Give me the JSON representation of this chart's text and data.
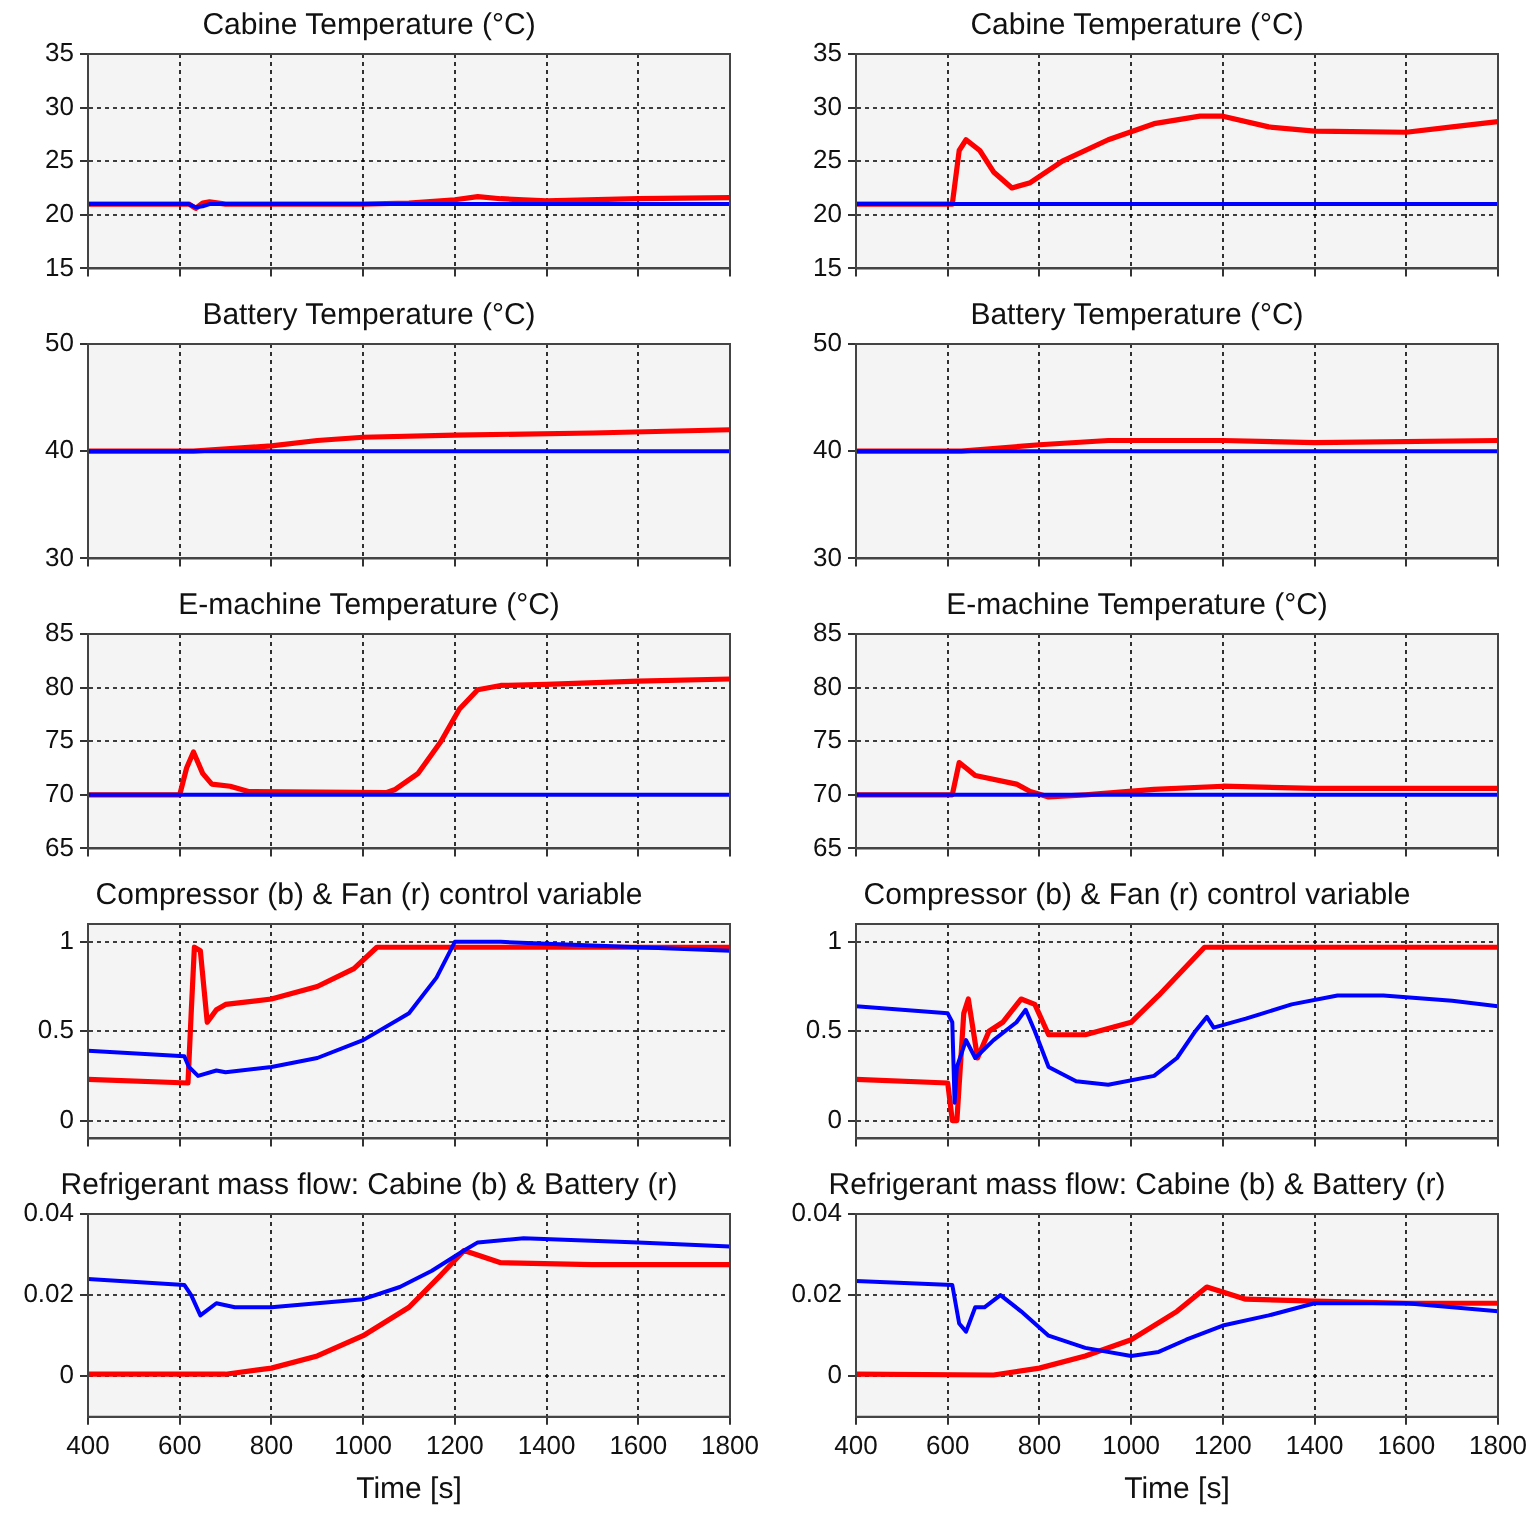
{
  "chart_data": [
    {
      "type": "line",
      "title": "Cabine Temperature (°C)",
      "xlim": [
        400,
        1800
      ],
      "xticks": [
        400,
        600,
        800,
        1000,
        1200,
        1400,
        1600,
        1800
      ],
      "ylim": [
        15,
        35
      ],
      "yticks": [
        15,
        20,
        25,
        30,
        35
      ],
      "grid": true,
      "tick_labels": "y",
      "series": [
        {
          "color": "#0000ff",
          "x": [
            400,
            620,
            635,
            650,
            665,
            700,
            1800
          ],
          "values": [
            21,
            21,
            20.7,
            20.8,
            21,
            21,
            21
          ]
        },
        {
          "color": "#ff0000",
          "x": [
            400,
            620,
            635,
            650,
            665,
            700,
            1000,
            1100,
            1200,
            1250,
            1300,
            1350,
            1400,
            1600,
            1800
          ],
          "values": [
            21,
            21,
            20.6,
            21.1,
            21.2,
            21,
            21,
            21.1,
            21.4,
            21.7,
            21.5,
            21.4,
            21.3,
            21.5,
            21.6
          ]
        }
      ]
    },
    {
      "type": "line",
      "title": "Cabine Temperature (°C)",
      "xlim": [
        400,
        1800
      ],
      "xticks": [
        400,
        600,
        800,
        1000,
        1200,
        1400,
        1600,
        1800
      ],
      "ylim": [
        15,
        35
      ],
      "yticks": [
        15,
        20,
        25,
        30,
        35
      ],
      "grid": true,
      "tick_labels": "y",
      "series": [
        {
          "color": "#0000ff",
          "x": [
            400,
            1800
          ],
          "values": [
            21,
            21
          ]
        },
        {
          "color": "#ff0000",
          "x": [
            400,
            610,
            625,
            640,
            670,
            700,
            740,
            780,
            850,
            950,
            1050,
            1150,
            1200,
            1300,
            1400,
            1600,
            1700,
            1800
          ],
          "values": [
            21,
            21,
            26,
            27,
            26,
            24,
            22.5,
            23,
            25,
            27,
            28.5,
            29.2,
            29.2,
            28.2,
            27.8,
            27.7,
            28.2,
            28.7
          ]
        }
      ]
    },
    {
      "type": "line",
      "title": "Battery Temperature (°C)",
      "xlim": [
        400,
        1800
      ],
      "xticks": [
        400,
        600,
        800,
        1000,
        1200,
        1400,
        1600,
        1800
      ],
      "ylim": [
        30,
        50
      ],
      "yticks": [
        30,
        40,
        50
      ],
      "grid": true,
      "tick_labels": "y",
      "series": [
        {
          "color": "#0000ff",
          "x": [
            400,
            1800
          ],
          "values": [
            40,
            40
          ]
        },
        {
          "color": "#ff0000",
          "x": [
            400,
            630,
            800,
            900,
            1000,
            1200,
            1500,
            1800
          ],
          "values": [
            40,
            40,
            40.5,
            41,
            41.3,
            41.5,
            41.7,
            42
          ]
        }
      ]
    },
    {
      "type": "line",
      "title": "Battery Temperature (°C)",
      "xlim": [
        400,
        1800
      ],
      "xticks": [
        400,
        600,
        800,
        1000,
        1200,
        1400,
        1600,
        1800
      ],
      "ylim": [
        30,
        50
      ],
      "yticks": [
        30,
        40,
        50
      ],
      "grid": true,
      "tick_labels": "y",
      "series": [
        {
          "color": "#0000ff",
          "x": [
            400,
            1800
          ],
          "values": [
            40,
            40
          ]
        },
        {
          "color": "#ff0000",
          "x": [
            400,
            630,
            800,
            950,
            1200,
            1400,
            1800
          ],
          "values": [
            40,
            40,
            40.6,
            41,
            41,
            40.8,
            41
          ]
        }
      ]
    },
    {
      "type": "line",
      "title": "E-machine Temperature (°C)",
      "xlim": [
        400,
        1800
      ],
      "xticks": [
        400,
        600,
        800,
        1000,
        1200,
        1400,
        1600,
        1800
      ],
      "ylim": [
        65,
        85
      ],
      "yticks": [
        65,
        70,
        75,
        80,
        85
      ],
      "grid": true,
      "tick_labels": "y",
      "series": [
        {
          "color": "#0000ff",
          "x": [
            400,
            1800
          ],
          "values": [
            70,
            70
          ]
        },
        {
          "color": "#ff0000",
          "x": [
            400,
            600,
            615,
            630,
            650,
            670,
            710,
            750,
            1050,
            1070,
            1120,
            1170,
            1210,
            1250,
            1300,
            1400,
            1600,
            1800
          ],
          "values": [
            70,
            70,
            72.5,
            74,
            72,
            71,
            70.8,
            70.3,
            70.2,
            70.5,
            72,
            75,
            78,
            79.8,
            80.2,
            80.3,
            80.6,
            80.8
          ]
        }
      ]
    },
    {
      "type": "line",
      "title": "E-machine Temperature (°C)",
      "xlim": [
        400,
        1800
      ],
      "xticks": [
        400,
        600,
        800,
        1000,
        1200,
        1400,
        1600,
        1800
      ],
      "ylim": [
        65,
        85
      ],
      "yticks": [
        65,
        70,
        75,
        80,
        85
      ],
      "grid": true,
      "tick_labels": "y",
      "series": [
        {
          "color": "#0000ff",
          "x": [
            400,
            1800
          ],
          "values": [
            70,
            70
          ]
        },
        {
          "color": "#ff0000",
          "x": [
            400,
            610,
            625,
            640,
            660,
            750,
            780,
            820,
            900,
            1050,
            1200,
            1400,
            1800
          ],
          "values": [
            70,
            70,
            73,
            72.5,
            71.8,
            71,
            70.3,
            69.8,
            70,
            70.5,
            70.8,
            70.6,
            70.6
          ]
        }
      ]
    },
    {
      "type": "line",
      "title": "Compressor (b) & Fan (r) control variable",
      "xlim": [
        400,
        1800
      ],
      "xticks": [
        400,
        600,
        800,
        1000,
        1200,
        1400,
        1600,
        1800
      ],
      "ylim": [
        -0.1,
        1.1
      ],
      "yticks": [
        0,
        0.5,
        1
      ],
      "grid": true,
      "tick_labels": "y",
      "series": [
        {
          "color": "#0000ff",
          "x": [
            400,
            610,
            620,
            640,
            680,
            700,
            800,
            900,
            1000,
            1100,
            1160,
            1200,
            1300,
            1500,
            1800
          ],
          "values": [
            0.39,
            0.36,
            0.3,
            0.25,
            0.28,
            0.27,
            0.3,
            0.35,
            0.45,
            0.6,
            0.8,
            1,
            1,
            0.98,
            0.95
          ]
        },
        {
          "color": "#ff0000",
          "x": [
            400,
            618,
            625,
            632,
            645,
            660,
            680,
            700,
            800,
            900,
            980,
            1030,
            1800
          ],
          "values": [
            0.23,
            0.21,
            0.6,
            0.97,
            0.95,
            0.55,
            0.62,
            0.65,
            0.68,
            0.75,
            0.85,
            0.97,
            0.97
          ]
        }
      ]
    },
    {
      "type": "line",
      "title": "Compressor (b) & Fan (r) control variable",
      "xlim": [
        400,
        1800
      ],
      "xticks": [
        400,
        600,
        800,
        1000,
        1200,
        1400,
        1600,
        1800
      ],
      "ylim": [
        -0.1,
        1.1
      ],
      "yticks": [
        0,
        0.5,
        1
      ],
      "grid": true,
      "tick_labels": "y",
      "series": [
        {
          "color": "#0000ff",
          "x": [
            400,
            600,
            610,
            615,
            620,
            640,
            660,
            700,
            750,
            770,
            790,
            820,
            880,
            950,
            1050,
            1100,
            1140,
            1165,
            1180,
            1250,
            1350,
            1450,
            1550,
            1700,
            1800
          ],
          "values": [
            0.64,
            0.6,
            0.55,
            0.1,
            0.3,
            0.45,
            0.35,
            0.45,
            0.55,
            0.62,
            0.5,
            0.3,
            0.22,
            0.2,
            0.25,
            0.35,
            0.5,
            0.58,
            0.52,
            0.57,
            0.65,
            0.7,
            0.7,
            0.67,
            0.64
          ]
        },
        {
          "color": "#ff0000",
          "x": [
            400,
            600,
            610,
            620,
            635,
            645,
            665,
            690,
            720,
            760,
            790,
            820,
            900,
            1000,
            1060,
            1160,
            1800
          ],
          "values": [
            0.23,
            0.21,
            0,
            0,
            0.6,
            0.68,
            0.35,
            0.5,
            0.55,
            0.68,
            0.65,
            0.48,
            0.48,
            0.55,
            0.7,
            0.97,
            0.97
          ]
        }
      ]
    },
    {
      "type": "line",
      "title": "Refrigerant mass flow: Cabine (b) & Battery (r)",
      "xlabel": "Time [s]",
      "xlim": [
        400,
        1800
      ],
      "xticks": [
        400,
        600,
        800,
        1000,
        1200,
        1400,
        1600,
        1800
      ],
      "ylim": [
        -0.01,
        0.04
      ],
      "yticks": [
        0,
        0.02,
        0.04
      ],
      "grid": true,
      "series": [
        {
          "color": "#0000ff",
          "x": [
            400,
            610,
            625,
            645,
            680,
            720,
            800,
            900,
            1000,
            1080,
            1150,
            1220,
            1250,
            1350,
            1600,
            1800
          ],
          "values": [
            0.024,
            0.0225,
            0.02,
            0.015,
            0.018,
            0.017,
            0.017,
            0.018,
            0.019,
            0.022,
            0.026,
            0.031,
            0.033,
            0.034,
            0.033,
            0.032
          ]
        },
        {
          "color": "#ff0000",
          "x": [
            400,
            700,
            800,
            900,
            1000,
            1100,
            1170,
            1220,
            1300,
            1500,
            1800
          ],
          "values": [
            0.0005,
            0.0005,
            0.002,
            0.005,
            0.01,
            0.017,
            0.025,
            0.031,
            0.028,
            0.0275,
            0.0275
          ]
        }
      ]
    },
    {
      "type": "line",
      "title": "Refrigerant mass flow: Cabine (b) & Battery (r)",
      "xlabel": "Time [s]",
      "xlim": [
        400,
        1800
      ],
      "xticks": [
        400,
        600,
        800,
        1000,
        1200,
        1400,
        1600,
        1800
      ],
      "ylim": [
        -0.01,
        0.04
      ],
      "yticks": [
        0,
        0.02,
        0.04
      ],
      "grid": true,
      "series": [
        {
          "color": "#0000ff",
          "x": [
            400,
            610,
            625,
            640,
            660,
            680,
            715,
            760,
            820,
            900,
            1000,
            1060,
            1120,
            1200,
            1300,
            1400,
            1600,
            1800
          ],
          "values": [
            0.0235,
            0.0225,
            0.013,
            0.011,
            0.017,
            0.017,
            0.02,
            0.016,
            0.01,
            0.007,
            0.005,
            0.006,
            0.009,
            0.0125,
            0.015,
            0.018,
            0.018,
            0.016
          ]
        },
        {
          "color": "#ff0000",
          "x": [
            400,
            700,
            800,
            900,
            1000,
            1100,
            1165,
            1250,
            1400,
            1600,
            1800
          ],
          "values": [
            0.0005,
            0.0003,
            0.002,
            0.005,
            0.009,
            0.016,
            0.022,
            0.019,
            0.0185,
            0.018,
            0.018
          ]
        }
      ]
    }
  ]
}
